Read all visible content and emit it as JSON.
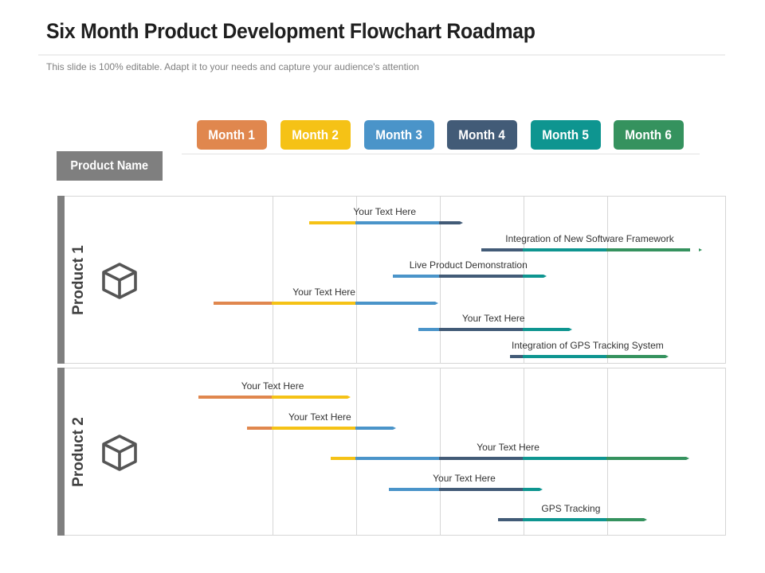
{
  "title": "Six Month Product Development Flowchart Roadmap",
  "subtitle": "This slide is 100% editable. Adapt it to your needs and capture your audience's attention",
  "product_name_label": "Product Name",
  "months": [
    {
      "label": "Month 1",
      "color": "#E0874E"
    },
    {
      "label": "Month 2",
      "color": "#F5C216"
    },
    {
      "label": "Month 3",
      "color": "#4A94C9"
    },
    {
      "label": "Month 4",
      "color": "#425B77"
    },
    {
      "label": "Month 5",
      "color": "#0E9590"
    },
    {
      "label": "Month 6",
      "color": "#35925E"
    }
  ],
  "products": [
    {
      "label": "Product 1",
      "icon": "cube-icon",
      "tasks": [
        {
          "label": "Your Text Here",
          "start": 1.45,
          "end": 3.25
        },
        {
          "label": "Integration of New Software Framework",
          "start": 3.5,
          "end": 6.1
        },
        {
          "label": "Live Product Demonstration",
          "start": 2.45,
          "end": 4.25
        },
        {
          "label": "Your Text Here",
          "start": 0.3,
          "end": 2.95
        },
        {
          "label": "Your Text Here",
          "start": 2.75,
          "end": 4.55
        },
        {
          "label": "Integration of GPS Tracking System",
          "start": 3.85,
          "end": 5.7
        }
      ]
    },
    {
      "label": "Product 2",
      "icon": "cube-icon",
      "tasks": [
        {
          "label": "Your Text Here",
          "start": 0.12,
          "end": 1.9
        },
        {
          "label": "Your Text Here",
          "start": 0.7,
          "end": 2.45
        },
        {
          "label": "Your Text Here",
          "start": 1.7,
          "end": 5.95
        },
        {
          "label": "Your Text Here",
          "start": 2.4,
          "end": 4.2
        },
        {
          "label": "GPS Tracking",
          "start": 3.7,
          "end": 5.45
        }
      ]
    }
  ]
}
